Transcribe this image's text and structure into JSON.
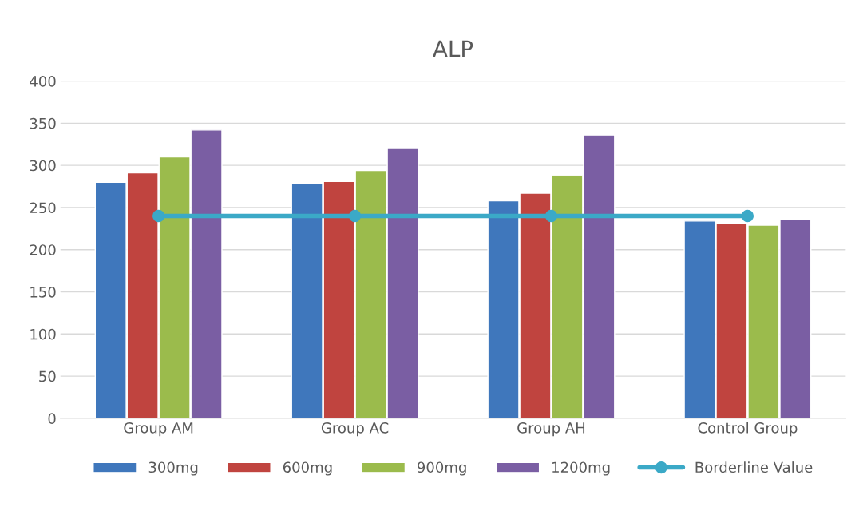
{
  "chart_data": {
    "type": "bar",
    "title": "ALP",
    "categories": [
      "Group AM",
      "Group AC",
      "Group AH",
      "Control Group"
    ],
    "series": [
      {
        "name": "300mg",
        "color": "#3f77bc",
        "values": [
          280,
          278,
          258,
          234
        ]
      },
      {
        "name": "600mg",
        "color": "#c0443f",
        "values": [
          291,
          281,
          267,
          231
        ]
      },
      {
        "name": "900mg",
        "color": "#9bbb4c",
        "values": [
          310,
          294,
          288,
          229
        ]
      },
      {
        "name": "1200mg",
        "color": "#7a5ea3",
        "values": [
          342,
          321,
          336,
          236
        ]
      },
      {
        "name": "Borderline Value",
        "type": "line",
        "color": "#3ba9c7",
        "marker": "circle",
        "values": [
          240,
          240,
          240,
          240
        ]
      }
    ],
    "ylim": [
      0,
      400
    ],
    "yticks": [
      0,
      50,
      100,
      150,
      200,
      250,
      300,
      350,
      400
    ],
    "grid": "y",
    "legend": "bottom"
  }
}
